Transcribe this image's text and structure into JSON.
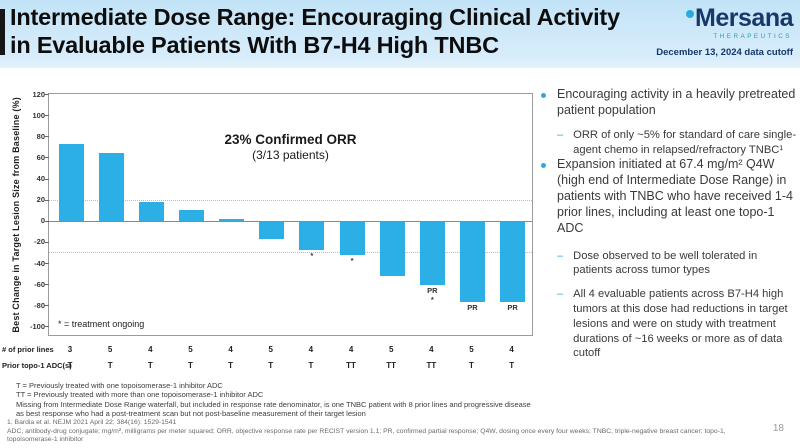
{
  "slide": {
    "title_line1": "Intermediate Dose Range: Encouraging Clinical Activity",
    "title_line2": "in Evaluable Patients With B7-H4 High TNBC",
    "page_number": "18"
  },
  "logo": {
    "name": "Mersana",
    "tagline": "THERAPEUTICS",
    "date_cutoff": "December 13, 2024 data cutoff"
  },
  "colors": {
    "bar_cyan": "#2BAFE4",
    "accent_cyan": "#29ABE2",
    "logo_navy": "#16386B",
    "logo_teal": "#2E9CA3",
    "header_blue": "#C2E3F7"
  },
  "chart_data": {
    "type": "bar",
    "title": "23% Confirmed ORR",
    "subtitle": "(3/13 patients)",
    "ylabel": "Best Change in Target Lesion Size from Baseline (%)",
    "ylim": [
      -110,
      120
    ],
    "yticks": [
      120,
      100,
      80,
      60,
      40,
      20,
      0,
      -20,
      -40,
      -60,
      -80,
      -100
    ],
    "reference_lines": [
      20,
      -30
    ],
    "grid": "dotted horizontal reference lines at +20 and -30; solid zero line",
    "legend": "* = treatment ongoing",
    "legend_position": "bottom-left inside plot",
    "values": [
      73,
      64,
      18,
      10,
      2,
      -16,
      -27,
      -31,
      -51,
      -60,
      -76,
      -76
    ],
    "pr_flags": [
      false,
      false,
      false,
      false,
      false,
      false,
      false,
      false,
      false,
      true,
      true,
      true
    ],
    "ongoing_flags": [
      false,
      false,
      false,
      false,
      false,
      false,
      true,
      true,
      false,
      true,
      false,
      false
    ],
    "pr_label": "PR",
    "ongoing_marker": "*"
  },
  "patient_table": {
    "row1_header": "# of prior lines",
    "row2_header": "Prior topo-1 ADC(s)",
    "prior_lines": [
      "3",
      "5",
      "4",
      "5",
      "4",
      "5",
      "4",
      "4",
      "5",
      "4",
      "5",
      "4"
    ],
    "prior_topo1_adcs": [
      "T",
      "T",
      "T",
      "T",
      "T",
      "T",
      "T",
      "TT",
      "TT",
      "TT",
      "T",
      "T"
    ]
  },
  "right_panel": {
    "bullets": [
      {
        "text": "Encouraging activity in a heavily pretreated patient population",
        "subs": [
          "ORR of only ~5% for standard of care single-agent chemo in relapsed/refractory TNBC¹"
        ]
      },
      {
        "text": "Expansion initiated at 67.4 mg/m² Q4W (high end of Intermediate Dose Range) in patients with TNBC who have received 1-4 prior lines, including at least one topo-1 ADC",
        "subs": [
          "Dose observed to be well tolerated in patients across tumor types",
          "All 4 evaluable patients across B7-H4 high tumors at this dose had reductions in target lesions and were on study with treatment durations of ~16 weeks or more as of data cutoff"
        ]
      }
    ]
  },
  "footnotes": {
    "t_def": "T = Previously treated with one topoisomerase-1 inhibitor ADC",
    "tt_def": "TT = Previously treated with more than one topoisomerase-1 inhibitor ADC",
    "missing_note": "Missing from Intermediate Dose Range waterfall, but included in response rate denominator, is one TNBC patient with 8 prior lines and progressive disease as best response who had a post-treatment scan but not post-baseline measurement of their target lesion",
    "reference": "1. Bardia et al. NEJM 2021 April 22; 384(16): 1529-1541",
    "abbreviations": "ADC, antibody-drug conjugate; mg/m², milligrams per meter squared; ORR, objective response rate per RECIST version 1.1; PR, confirmed partial response; Q4W, dosing once every four weeks; TNBC, triple-negative breast cancer; topo-1, topoisomerase-1 inhibitor"
  }
}
